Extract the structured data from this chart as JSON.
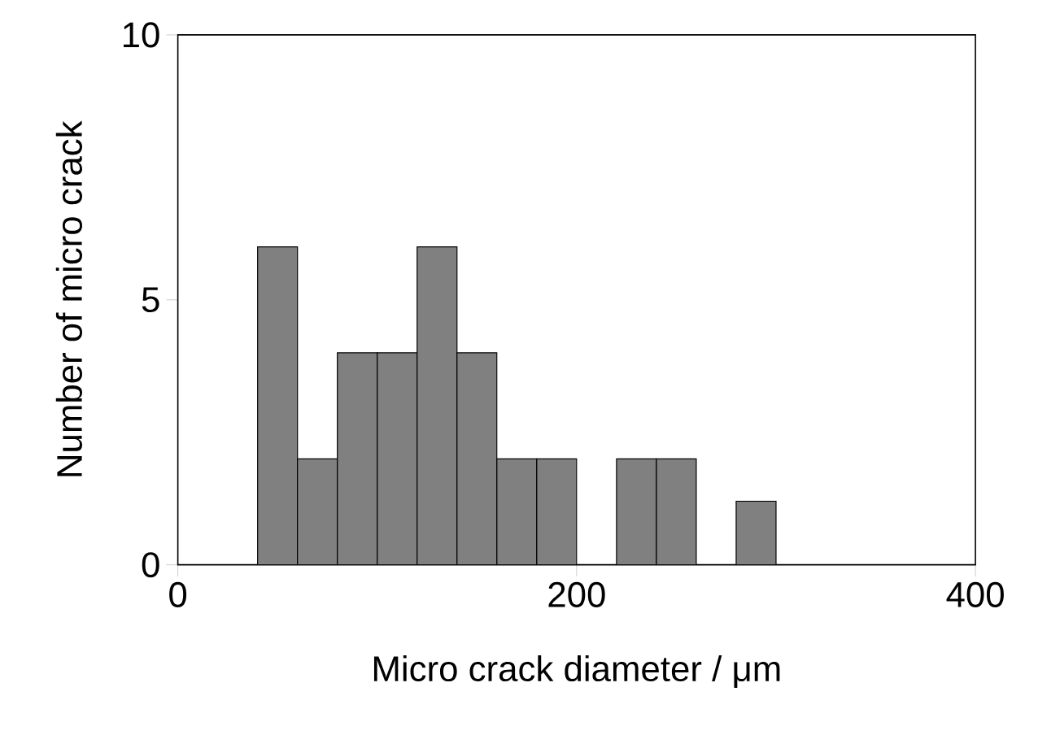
{
  "chart_data": {
    "type": "histogram",
    "xlabel": "Micro crack diameter / μm",
    "ylabel": "Number of micro crack",
    "bins": [
      40,
      60,
      80,
      100,
      120,
      140,
      160,
      180,
      200,
      220,
      240,
      260,
      280,
      300
    ],
    "values": [
      6,
      2,
      4,
      4,
      6,
      4,
      2,
      2,
      0,
      2,
      2,
      0,
      1.2
    ],
    "color": "#808080",
    "xlim": [
      0,
      400
    ],
    "xticks": [
      0,
      200,
      400
    ],
    "ylim": [
      0,
      10
    ],
    "yticks": [
      0,
      5,
      10
    ],
    "grid": false
  }
}
